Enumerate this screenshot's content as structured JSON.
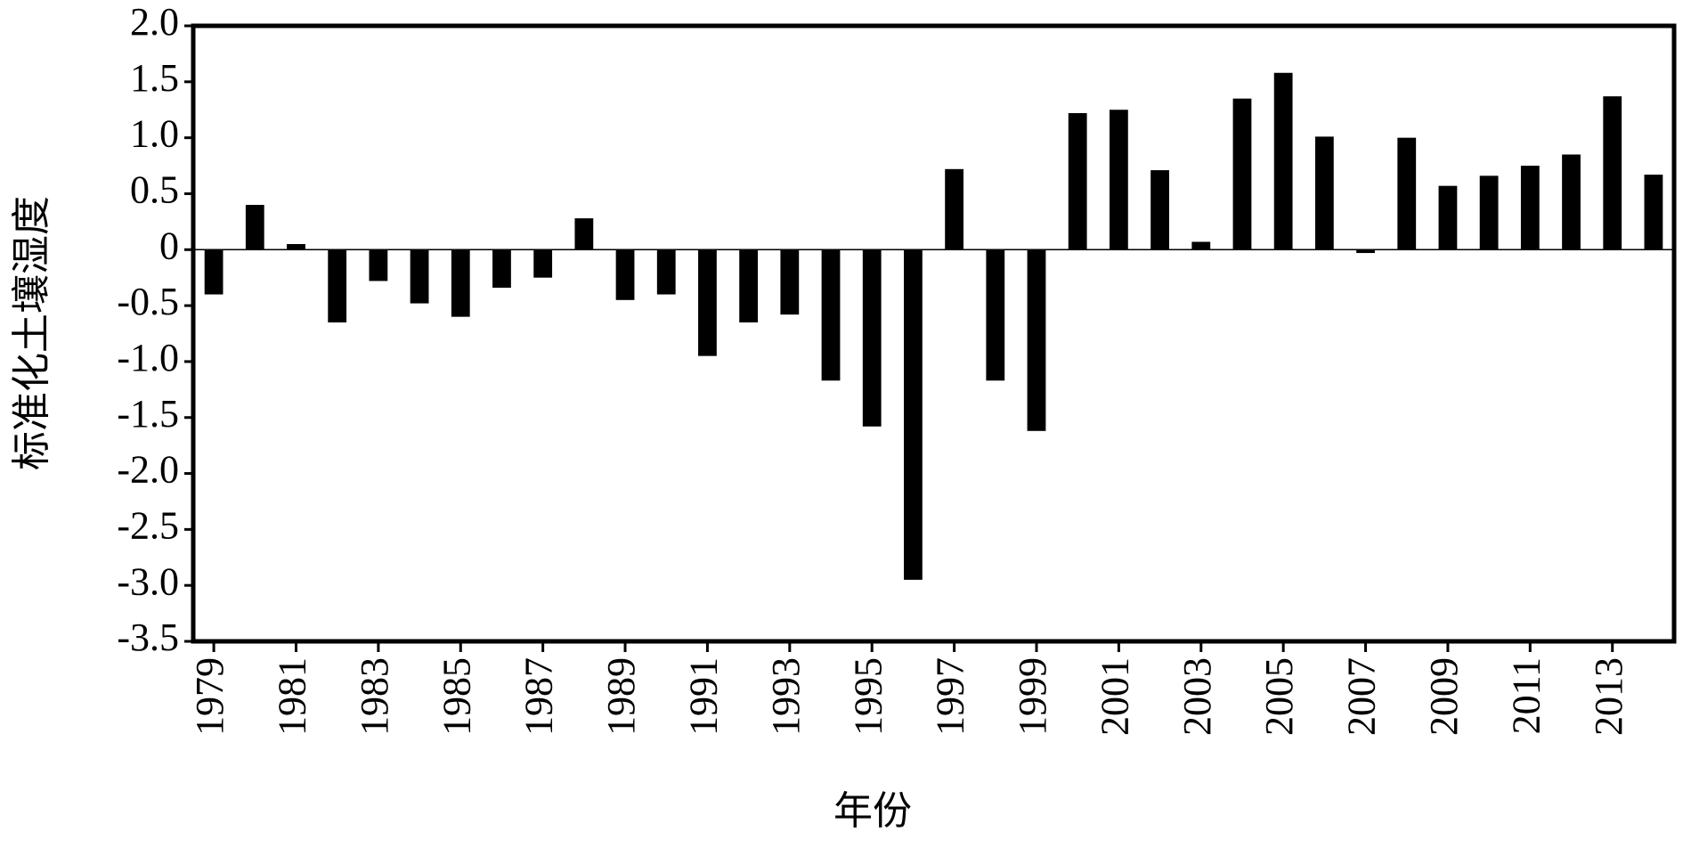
{
  "chart_data": {
    "type": "bar",
    "x_label": "年份",
    "y_label": "标准化土壤湿度",
    "categories": [
      "1979",
      null,
      "1981",
      null,
      "1983",
      null,
      "1985",
      null,
      "1987",
      null,
      "1989",
      null,
      "1991",
      null,
      "1993",
      null,
      "1995",
      null,
      "1997",
      null,
      "1999",
      null,
      "2001",
      null,
      "2003",
      null,
      "2005",
      null,
      "2007",
      null,
      "2009",
      null,
      "2011",
      null,
      "2013",
      null
    ],
    "values": [
      -0.4,
      0.4,
      0.05,
      -0.65,
      -0.28,
      -0.48,
      -0.6,
      -0.34,
      -0.25,
      0.28,
      -0.45,
      -0.4,
      -0.95,
      -0.65,
      -0.58,
      -1.17,
      -1.58,
      -2.95,
      0.72,
      -1.17,
      -1.62,
      1.22,
      1.25,
      0.71,
      0.07,
      1.35,
      1.58,
      1.01,
      -0.03,
      1.0,
      0.57,
      0.66,
      0.75,
      0.85,
      1.37,
      0.67
    ],
    "color": "#000000",
    "ylim": [
      -3.5,
      2.0
    ],
    "yticks": [
      {
        "value": -3.5,
        "label": "-3.5"
      },
      {
        "value": -3.0,
        "label": "-3.0"
      },
      -2.5,
      {
        "value": -2.0,
        "label": "-2.0"
      },
      -1.5,
      {
        "value": -1.0,
        "label": "-1.0"
      },
      -0.5,
      0,
      0.5,
      {
        "value": 1.0,
        "label": "1.0"
      },
      1.5,
      {
        "value": 2.0,
        "label": "2.0"
      }
    ],
    "grid": false
  }
}
